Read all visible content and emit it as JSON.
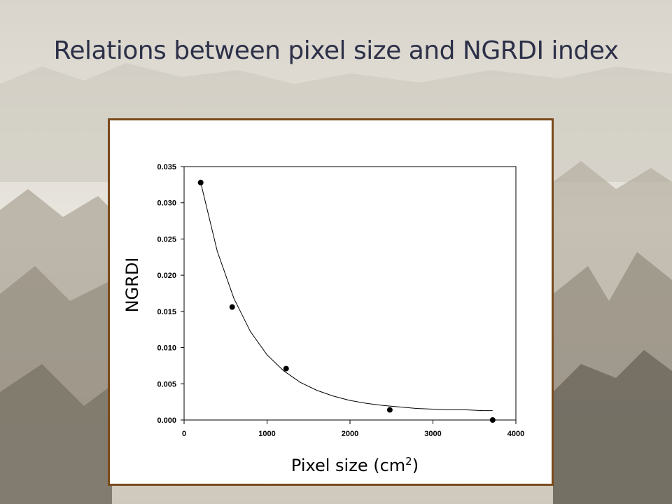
{
  "slide": {
    "title": "Relations between pixel size and NGRDI index"
  },
  "chart_data": {
    "type": "scatter",
    "title": "",
    "xlabel_prefix": "Pixel size (cm",
    "xlabel_sup": "2",
    "xlabel_suffix": ")",
    "ylabel": "NGRDI",
    "xlim": [
      0,
      4000
    ],
    "ylim": [
      0,
      0.035
    ],
    "x_ticks": [
      "0",
      "1000",
      "2000",
      "3000",
      "4000"
    ],
    "y_ticks": [
      "0.000",
      "0.005",
      "0.010",
      "0.015",
      "0.020",
      "0.025",
      "0.030",
      "0.035"
    ],
    "grid": false,
    "legend": "none",
    "series": [
      {
        "points": [
          {
            "x": 200,
            "y": 0.0328
          },
          {
            "x": 580,
            "y": 0.0156
          },
          {
            "x": 1230,
            "y": 0.0071
          },
          {
            "x": 2480,
            "y": 0.0014
          },
          {
            "x": 3720,
            "y": 0.0
          }
        ]
      }
    ],
    "fit_curve": {
      "type": "exponential-decay",
      "x": [
        200,
        400,
        600,
        800,
        1000,
        1200,
        1400,
        1600,
        1800,
        2000,
        2200,
        2400,
        2600,
        2800,
        3000,
        3200,
        3400,
        3600,
        3720
      ],
      "y": [
        0.0328,
        0.0233,
        0.0168,
        0.0122,
        0.009,
        0.0068,
        0.0052,
        0.0041,
        0.0033,
        0.0027,
        0.0023,
        0.002,
        0.0018,
        0.0016,
        0.0015,
        0.0014,
        0.0014,
        0.0013,
        0.0013
      ]
    },
    "colors": {
      "points": "#000000",
      "curve": "#000000",
      "frame_border": "#7a4a1c",
      "title_text": "#2d3048"
    }
  }
}
